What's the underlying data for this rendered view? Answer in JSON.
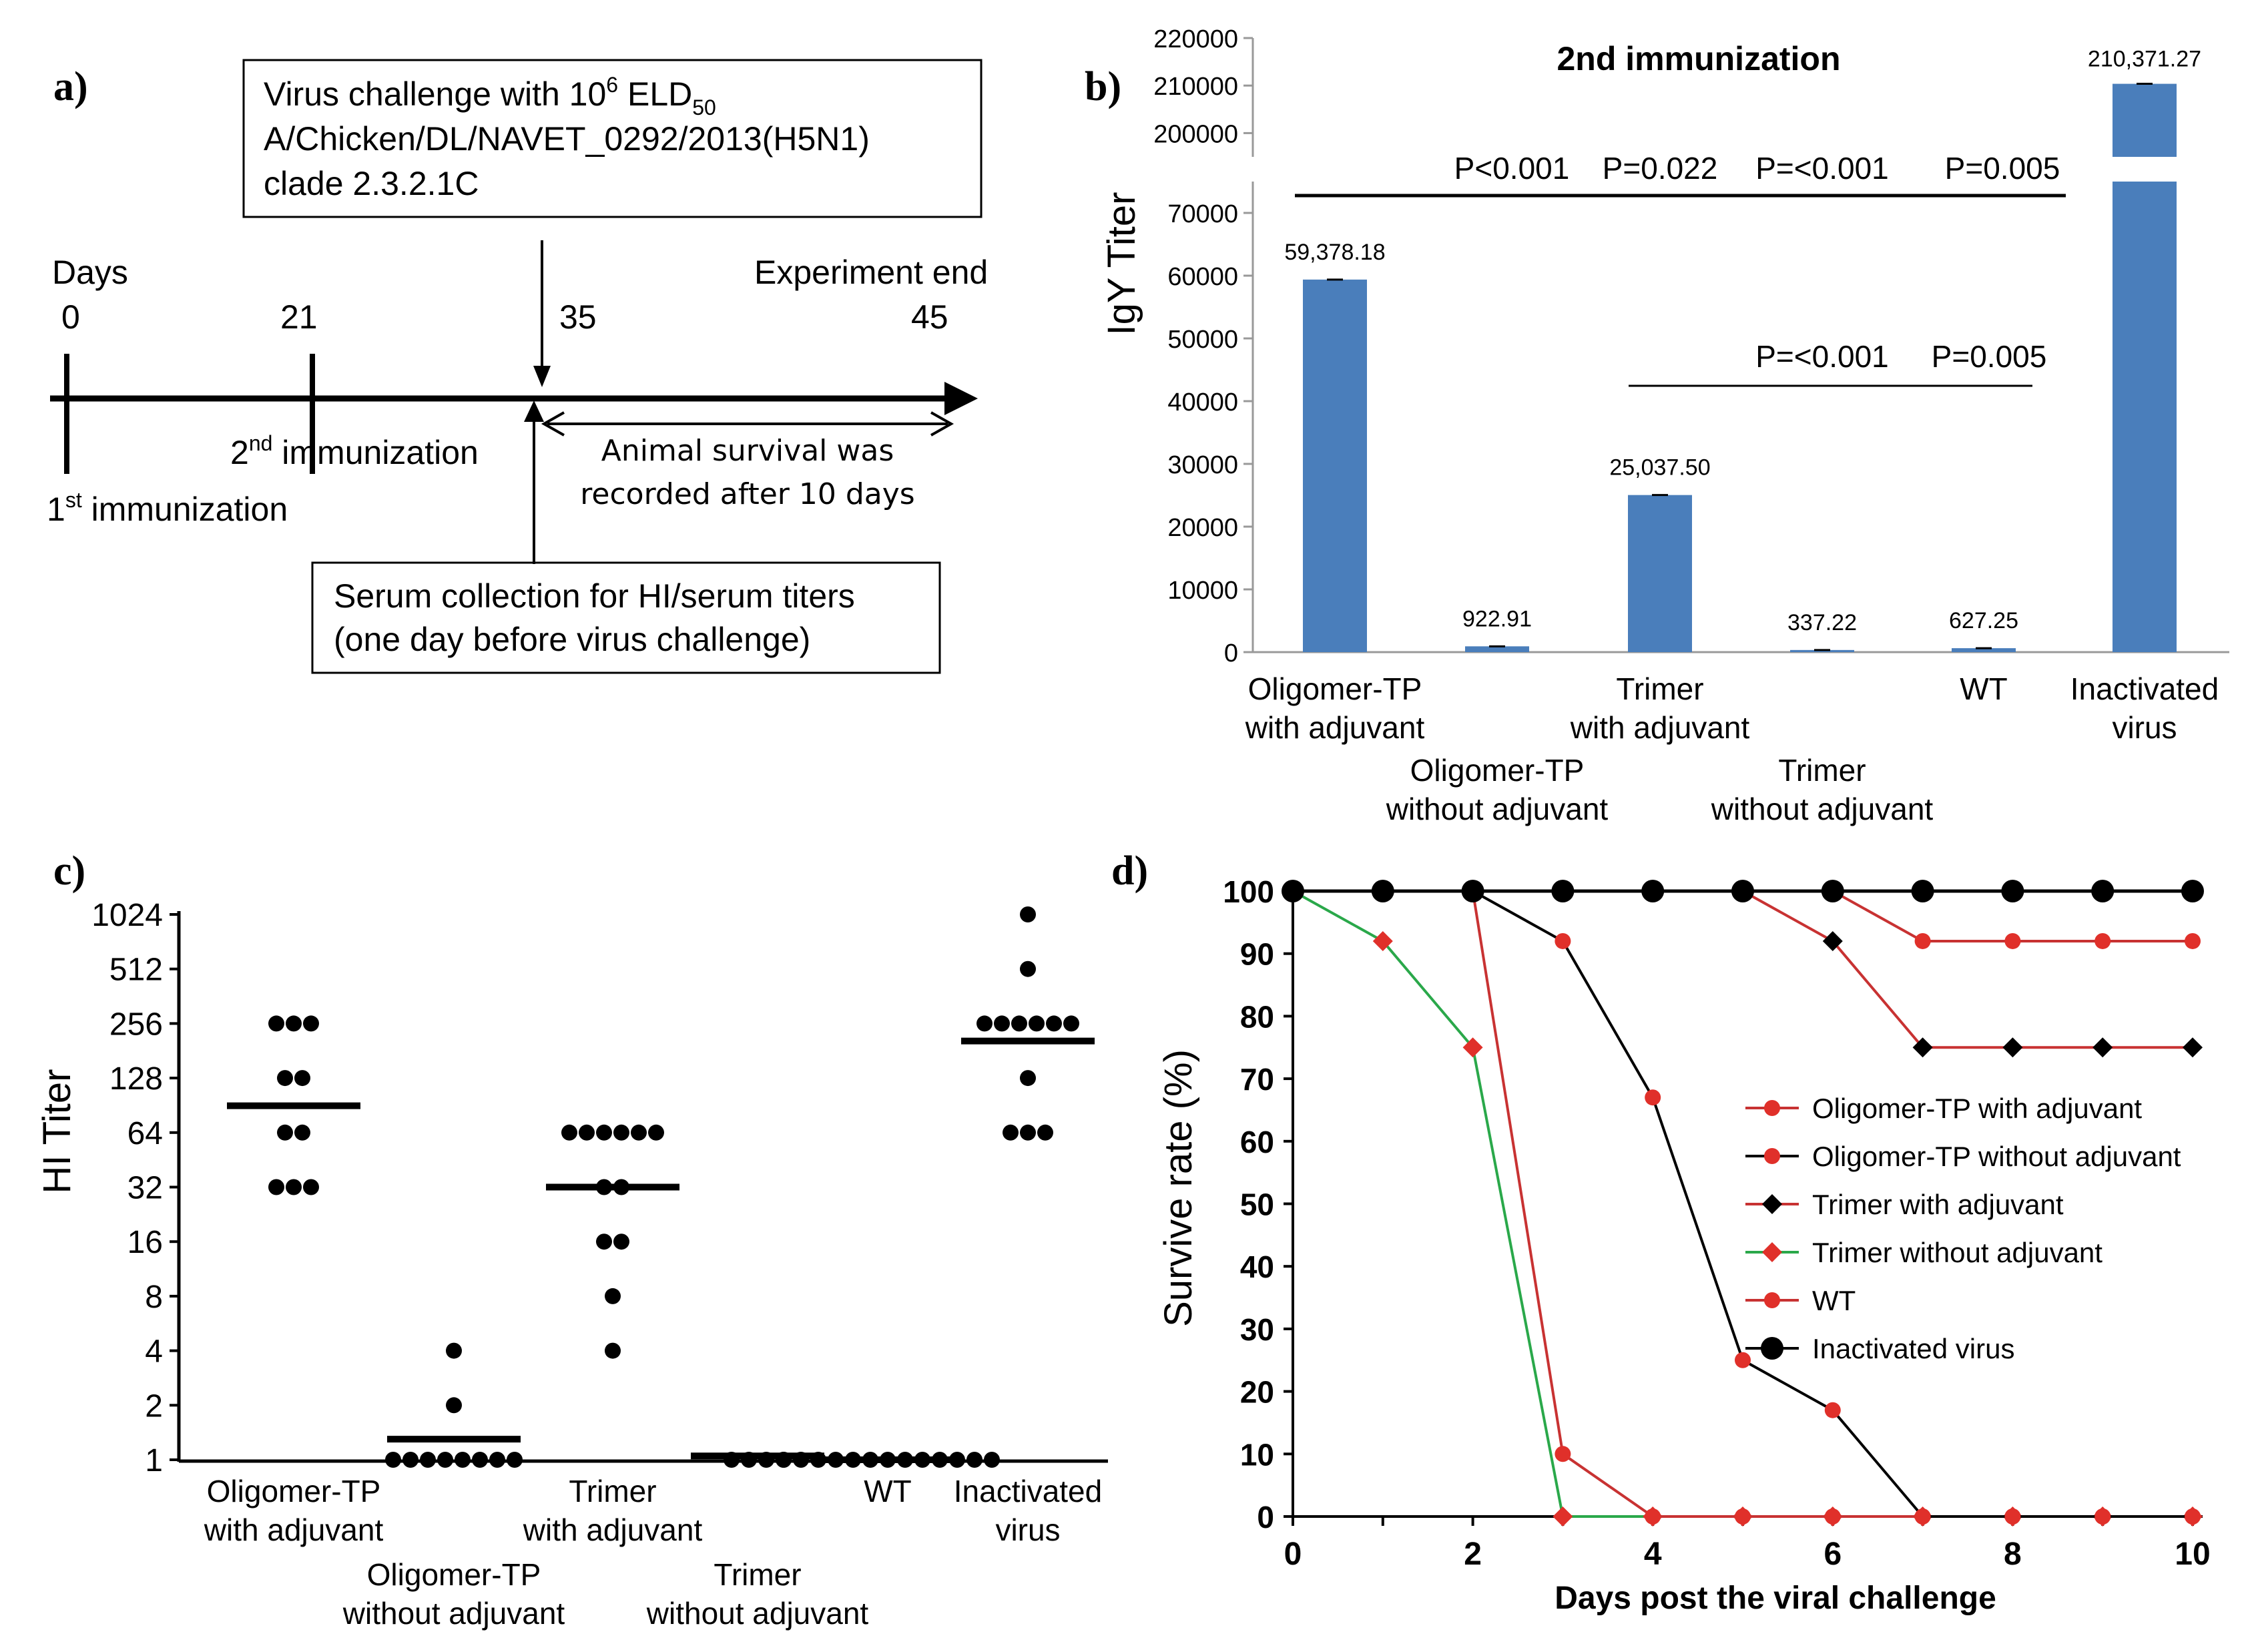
{
  "panel_labels": {
    "a": "a)",
    "b": "b)",
    "c": "c)",
    "d": "d)"
  },
  "timeline": {
    "challenge_box": {
      "line1_pre": "Virus challenge with 10",
      "line1_sup": "6",
      "line1_mid": " ELD",
      "line1_sub": "50",
      "line2": "A/Chicken/DL/NAVET_0292/2013(H5N1)",
      "line3": "clade 2.3.2.1C"
    },
    "days_label": "Days",
    "experiment_end_label": "Experiment end",
    "day_0": "0",
    "day_21": "21",
    "day_35": "35",
    "day_45": "45",
    "second_imm": {
      "pre": "2",
      "sup": "nd",
      "post": " immunization"
    },
    "first_imm": {
      "pre": "1",
      "sup": "st",
      "post": " immunization"
    },
    "survival_line1": "Animal survival was",
    "survival_line2": "recorded after 10 days",
    "serum_line1": "Serum collection for HI/serum titers",
    "serum_line2": "(one day before virus challenge)"
  },
  "panel_b": {
    "title": "2nd immunization",
    "ylabel": "IgY Titer",
    "y_ticks_lower": [
      "0",
      "10000",
      "20000",
      "30000",
      "40000",
      "50000",
      "60000",
      "70000"
    ],
    "y_ticks_upper": [
      "200000",
      "210000",
      "220000"
    ],
    "x_labels": [
      {
        "line1": "Oligomer-TP",
        "line2": "with adjuvant"
      },
      {
        "line1": "Oligomer-TP",
        "line2": "without adjuvant"
      },
      {
        "line1": "Trimer",
        "line2": "with adjuvant"
      },
      {
        "line1": "Trimer",
        "line2": "without adjuvant"
      },
      {
        "line1": "WT",
        "line2": ""
      },
      {
        "line1": "Inactivated",
        "line2": "virus"
      }
    ],
    "value_labels": [
      "59,378.18",
      "922.91",
      "25,037.50",
      "337.22",
      "627.25",
      "210,371.27"
    ],
    "p_top": [
      "P<0.001",
      "P=0.022",
      "P=<0.001",
      "P=0.005"
    ],
    "p_bottom": [
      "P=<0.001",
      "P=0.005"
    ]
  },
  "panel_c": {
    "ylabel": "HI Titer",
    "y_ticks": [
      "1",
      "2",
      "4",
      "8",
      "16",
      "32",
      "64",
      "128",
      "256",
      "512",
      "1024"
    ],
    "x_labels": [
      {
        "line1": "Oligomer-TP",
        "line2": "with adjuvant"
      },
      {
        "line1": "Oligomer-TP",
        "line2": "without adjuvant"
      },
      {
        "line1": "Trimer",
        "line2": "with adjuvant"
      },
      {
        "line1": "Trimer",
        "line2": "without adjuvant"
      },
      {
        "line1": "WT",
        "line2": ""
      },
      {
        "line1": "Inactivated",
        "line2": "virus"
      }
    ]
  },
  "panel_d": {
    "ylabel": "Survive rate (%)",
    "xlabel": "Days post the viral challenge",
    "x_ticks": [
      "0",
      "2",
      "4",
      "6",
      "8",
      "10"
    ],
    "y_ticks": [
      "0",
      "10",
      "20",
      "30",
      "40",
      "50",
      "60",
      "70",
      "80",
      "90",
      "100"
    ],
    "legend": [
      "Oligomer-TP with adjuvant",
      "Oligomer-TP without adjuvant",
      "Trimer with adjuvant",
      "Trimer without adjuvant",
      "WT",
      "Inactivated virus"
    ]
  },
  "colors": {
    "bar": "#4a7ebb",
    "red_marker": "#e0302a",
    "red_line": "#c83232",
    "green_line": "#2aa84a",
    "black": "#000000"
  },
  "chart_data": [
    {
      "panel": "b",
      "type": "bar",
      "title": "2nd immunization",
      "xlabel": "",
      "ylabel": "IgY Titer",
      "categories": [
        "Oligomer-TP with adjuvant",
        "Oligomer-TP without adjuvant",
        "Trimer with adjuvant",
        "Trimer without adjuvant",
        "WT",
        "Inactivated virus"
      ],
      "values": [
        59378.18,
        922.91,
        25037.5,
        337.22,
        627.25,
        210371.27
      ],
      "ylim_lower": [
        0,
        75000
      ],
      "ylim_upper": [
        195000,
        220000
      ],
      "grid": false
    },
    {
      "panel": "c",
      "type": "scatter",
      "ylabel": "HI Titer",
      "yscale": "log2",
      "ylim": [
        1,
        1024
      ],
      "categories": [
        "Oligomer-TP with adjuvant",
        "Oligomer-TP without adjuvant",
        "Trimer with adjuvant",
        "Trimer without adjuvant",
        "WT",
        "Inactivated virus"
      ],
      "groups": [
        {
          "points": [
            256,
            256,
            256,
            128,
            128,
            64,
            64,
            32,
            32,
            32
          ],
          "mean": 90
        },
        {
          "points": [
            4,
            2,
            1,
            1,
            1,
            1,
            1,
            1,
            1,
            1
          ],
          "mean": 1.3
        },
        {
          "points": [
            64,
            64,
            64,
            64,
            64,
            64,
            32,
            32,
            16,
            16,
            8,
            4
          ],
          "mean": 32
        },
        {
          "points": [
            1,
            1,
            1,
            1
          ],
          "mean": 1.05
        },
        {
          "points": [
            1,
            1,
            1,
            1,
            1,
            1,
            1,
            1,
            1,
            1,
            1,
            1,
            1
          ],
          "mean": 1
        },
        {
          "points": [
            1024,
            512,
            256,
            256,
            256,
            256,
            256,
            256,
            128,
            64,
            64,
            64
          ],
          "mean": 205
        }
      ]
    },
    {
      "panel": "d",
      "type": "line",
      "xlabel": "Days post the viral challenge",
      "ylabel": "Survive rate (%)",
      "xlim": [
        0,
        10
      ],
      "ylim": [
        0,
        100
      ],
      "x": [
        0,
        1,
        2,
        3,
        4,
        5,
        6,
        7,
        8,
        9,
        10
      ],
      "series": [
        {
          "name": "Oligomer-TP with adjuvant",
          "values": [
            100,
            100,
            100,
            100,
            100,
            100,
            100,
            92,
            92,
            92,
            92
          ]
        },
        {
          "name": "Oligomer-TP without adjuvant",
          "values": [
            100,
            null,
            100,
            92,
            67,
            25,
            17,
            0,
            0,
            0,
            0
          ]
        },
        {
          "name": "Trimer with adjuvant",
          "values": [
            100,
            100,
            100,
            100,
            100,
            100,
            92,
            75,
            75,
            75,
            75
          ]
        },
        {
          "name": "Trimer without adjuvant",
          "values": [
            100,
            92,
            75,
            0,
            0,
            0,
            0,
            0,
            0,
            0,
            0
          ]
        },
        {
          "name": "WT",
          "values": [
            100,
            null,
            100,
            10,
            0,
            0,
            0,
            0,
            0,
            0,
            0
          ]
        },
        {
          "name": "Inactivated virus",
          "values": [
            100,
            100,
            100,
            100,
            100,
            100,
            100,
            100,
            100,
            100,
            100
          ]
        }
      ]
    }
  ]
}
